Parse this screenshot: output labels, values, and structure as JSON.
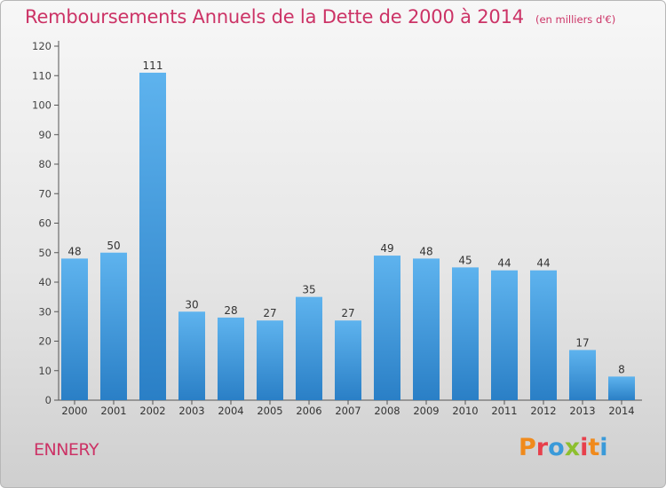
{
  "title": {
    "main": "Remboursements Annuels de la Dette de 2000 à 2014",
    "unit": "(en milliers d'€)"
  },
  "footer": {
    "commune": "ENNERY",
    "logo_text": "Proxiti"
  },
  "colors": {
    "title": "#cc3366",
    "bar_light": "#5eb3ee",
    "bar_dark": "#2a7fc6",
    "logo": [
      "#f08a1c",
      "#e7404c",
      "#3a9ad9",
      "#8dbf2e",
      "#e7404c",
      "#f08a1c",
      "#3a9ad9"
    ]
  },
  "chart_data": {
    "type": "bar",
    "categories": [
      "2000",
      "2001",
      "2002",
      "2003",
      "2004",
      "2005",
      "2006",
      "2007",
      "2008",
      "2009",
      "2010",
      "2011",
      "2012",
      "2013",
      "2014"
    ],
    "values": [
      48,
      50,
      111,
      30,
      28,
      27,
      35,
      27,
      49,
      48,
      45,
      44,
      44,
      17,
      8
    ],
    "data_labels": [
      "48",
      "50",
      "111",
      "30",
      "28",
      "27",
      "35",
      "27",
      "49",
      "48",
      "45",
      "44",
      "44",
      "17",
      "8"
    ],
    "yticks": [
      0,
      10,
      20,
      30,
      40,
      50,
      60,
      70,
      80,
      90,
      100,
      110,
      120
    ],
    "ylim": [
      0,
      120
    ],
    "title": "Remboursements Annuels de la Dette de 2000 à 2014",
    "xlabel": "",
    "ylabel": "",
    "grid": false,
    "legend": "none"
  }
}
